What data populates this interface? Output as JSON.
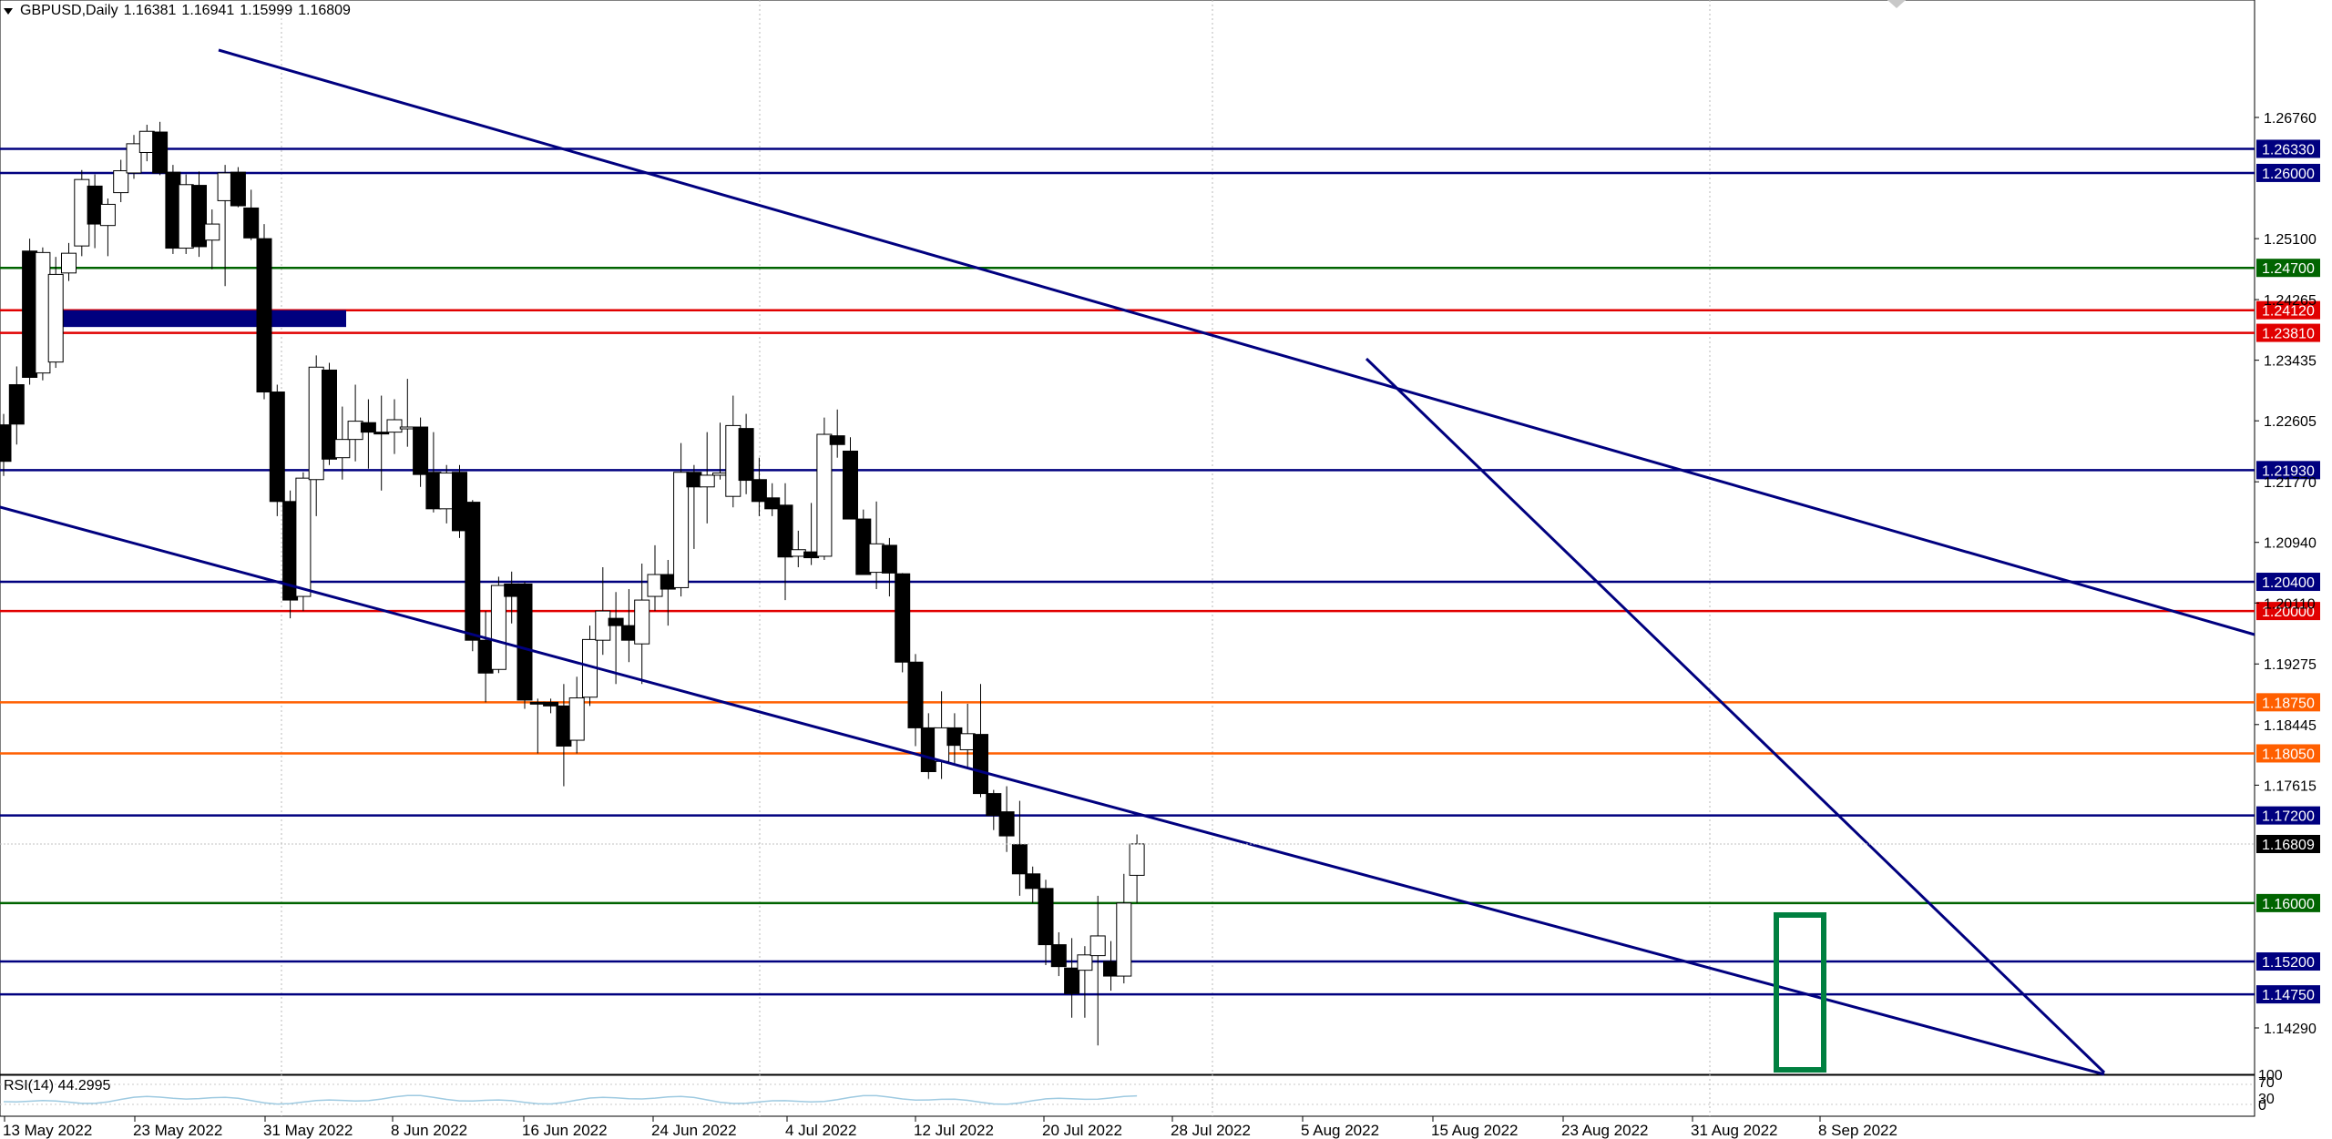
{
  "header": {
    "symbol": "GBPUSD,Daily",
    "open": "1.16381",
    "high": "1.16941",
    "low": "1.15999",
    "close": "1.16809"
  },
  "price_axis": {
    "ticks": [
      "1.26760",
      "1.25100",
      "1.24265",
      "1.23435",
      "1.22605",
      "1.21770",
      "1.20940",
      "1.20110",
      "1.19275",
      "1.18445",
      "1.17615",
      "1.14290"
    ],
    "current_price": "1.16809"
  },
  "levels": [
    {
      "price": "1.26330",
      "color": "#00007f"
    },
    {
      "price": "1.26000",
      "color": "#00007f"
    },
    {
      "price": "1.24700",
      "color": "#006400"
    },
    {
      "price": "1.24120",
      "color": "#e10000"
    },
    {
      "price": "1.23810",
      "color": "#e10000"
    },
    {
      "price": "1.21930",
      "color": "#00007f"
    },
    {
      "price": "1.20400",
      "color": "#00007f"
    },
    {
      "price": "1.20000",
      "color": "#e10000"
    },
    {
      "price": "1.18750",
      "color": "#ff5f00"
    },
    {
      "price": "1.18050",
      "color": "#ff5f00"
    },
    {
      "price": "1.17200",
      "color": "#00007f"
    },
    {
      "price": "1.16000",
      "color": "#006400"
    },
    {
      "price": "1.15200",
      "color": "#00007f"
    },
    {
      "price": "1.14750",
      "color": "#00007f"
    }
  ],
  "dates": [
    "13 May 2022",
    "23 May 2022",
    "31 May 2022",
    "8 Jun 2022",
    "16 Jun 2022",
    "24 Jun 2022",
    "4 Jul 2022",
    "12 Jul 2022",
    "20 Jul 2022",
    "28 Jul 2022",
    "5 Aug 2022",
    "15 Aug 2022",
    "23 Aug 2022",
    "31 Aug 2022",
    "8 Sep 2022"
  ],
  "rsi": {
    "label": "RSI(14) 44.2995",
    "axis_ticks": [
      "100",
      "70",
      "30",
      "0"
    ]
  },
  "colors": {
    "trendline": "#00007f",
    "highlight_box": "#008040",
    "zone_fill": "#00007f",
    "rsi_line": "#9ecae1"
  },
  "candles": [
    [
      1.2255,
      1.227,
      1.2185,
      1.2205
    ],
    [
      1.231,
      1.2335,
      1.2228,
      1.2256
    ],
    [
      1.2493,
      1.251,
      1.231,
      1.232
    ],
    [
      1.2326,
      1.2498,
      1.2316,
      1.2491
    ],
    [
      1.2341,
      1.2485,
      1.2333,
      1.2461
    ],
    [
      1.2463,
      1.2504,
      1.2452,
      1.249
    ],
    [
      1.25,
      1.2604,
      1.2486,
      1.2591
    ],
    [
      1.2582,
      1.2598,
      1.2497,
      1.253
    ],
    [
      1.2528,
      1.2565,
      1.2486,
      1.2557
    ],
    [
      1.2573,
      1.2618,
      1.256,
      1.2603
    ],
    [
      1.26,
      1.2652,
      1.2592,
      1.264
    ],
    [
      1.2628,
      1.2666,
      1.2616,
      1.2657
    ],
    [
      1.2656,
      1.267,
      1.2597,
      1.26
    ],
    [
      1.2601,
      1.2611,
      1.2489,
      1.2497
    ],
    [
      1.2497,
      1.2598,
      1.2489,
      1.2584
    ],
    [
      1.2583,
      1.2602,
      1.2485,
      1.2499
    ],
    [
      1.2508,
      1.255,
      1.2468,
      1.253
    ],
    [
      1.2562,
      1.2611,
      1.2445,
      1.26
    ],
    [
      1.2601,
      1.2608,
      1.2553,
      1.2555
    ],
    [
      1.2552,
      1.2577,
      1.2508,
      1.2511
    ],
    [
      1.251,
      1.253,
      1.229,
      1.23
    ],
    [
      1.23,
      1.231,
      1.213,
      1.215
    ],
    [
      1.215,
      1.2165,
      1.199,
      1.2015
    ],
    [
      1.202,
      1.219,
      1.2,
      1.2182
    ],
    [
      1.218,
      1.235,
      1.213,
      1.2334
    ],
    [
      1.233,
      1.234,
      1.22,
      1.2208
    ],
    [
      1.221,
      1.228,
      1.218,
      1.2235
    ],
    [
      1.2235,
      1.231,
      1.2205,
      1.226
    ],
    [
      1.2258,
      1.229,
      1.2195,
      1.2245
    ],
    [
      1.2245,
      1.2295,
      1.2165,
      1.2243
    ],
    [
      1.2245,
      1.229,
      1.2215,
      1.2262
    ],
    [
      1.225,
      1.2318,
      1.2225,
      1.2252
    ],
    [
      1.2252,
      1.2265,
      1.217,
      1.2187
    ],
    [
      1.219,
      1.2245,
      1.2135,
      1.214
    ],
    [
      1.214,
      1.22,
      1.212,
      1.2189
    ],
    [
      1.219,
      1.22,
      1.21,
      1.211
    ],
    [
      1.2149,
      1.2152,
      1.1945,
      1.196
    ],
    [
      1.196,
      1.2,
      1.1875,
      1.1915
    ],
    [
      1.192,
      1.2047,
      1.1915,
      1.2035
    ],
    [
      1.2037,
      1.2054,
      1.1983,
      1.202
    ],
    [
      1.2037,
      1.204,
      1.1866,
      1.1878
    ],
    [
      1.1875,
      1.188,
      1.1805,
      1.1873
    ],
    [
      1.1875,
      1.188,
      1.186,
      1.187
    ],
    [
      1.187,
      1.19,
      1.176,
      1.1815
    ],
    [
      1.1823,
      1.191,
      1.1805,
      1.1881
    ],
    [
      1.1882,
      1.198,
      1.187,
      1.1961
    ],
    [
      1.196,
      1.206,
      1.194,
      1.2
    ],
    [
      1.199,
      1.2026,
      1.19,
      1.198
    ],
    [
      1.198,
      1.203,
      1.193,
      1.196
    ],
    [
      1.1955,
      1.2065,
      1.19,
      1.2015
    ],
    [
      1.202,
      1.209,
      1.2,
      1.205
    ],
    [
      1.205,
      1.207,
      1.198,
      1.203
    ],
    [
      1.2032,
      1.223,
      1.202,
      1.219
    ],
    [
      1.219,
      1.22,
      1.2085,
      1.217
    ],
    [
      1.217,
      1.2245,
      1.212,
      1.2186
    ],
    [
      1.2186,
      1.2258,
      1.218,
      1.2189
    ],
    [
      1.2157,
      1.2295,
      1.2142,
      1.2254
    ],
    [
      1.225,
      1.227,
      1.216,
      1.2179
    ],
    [
      1.218,
      1.221,
      1.213,
      1.215
    ],
    [
      1.2155,
      1.2175,
      1.213,
      1.214
    ],
    [
      1.2145,
      1.2175,
      1.2015,
      1.2074
    ],
    [
      1.2075,
      1.211,
      1.206,
      1.2084
    ],
    [
      1.2081,
      1.2148,
      1.2063,
      1.2073
    ],
    [
      1.2075,
      1.2265,
      1.207,
      1.2242
    ],
    [
      1.224,
      1.2276,
      1.221,
      1.2228
    ],
    [
      1.2219,
      1.2238,
      1.213,
      1.2126
    ],
    [
      1.2126,
      1.2139,
      1.205,
      1.205
    ],
    [
      1.2053,
      1.215,
      1.203,
      1.2092
    ],
    [
      1.209,
      1.21,
      1.202,
      1.2052
    ],
    [
      1.2051,
      1.2052,
      1.1916,
      1.193
    ],
    [
      1.193,
      1.1941,
      1.1815,
      1.184
    ],
    [
      1.184,
      1.186,
      1.177,
      1.178
    ],
    [
      1.1794,
      1.189,
      1.177,
      1.184
    ],
    [
      1.184,
      1.186,
      1.179,
      1.1816
    ],
    [
      1.181,
      1.1873,
      1.1785,
      1.1832
    ],
    [
      1.1831,
      1.19,
      1.1745,
      1.175
    ],
    [
      1.175,
      1.1755,
      1.17,
      1.172
    ],
    [
      1.1725,
      1.176,
      1.167,
      1.1692
    ],
    [
      1.168,
      1.174,
      1.161,
      1.164
    ],
    [
      1.164,
      1.165,
      1.16,
      1.162
    ],
    [
      1.162,
      1.1632,
      1.1515,
      1.1543
    ],
    [
      1.1543,
      1.156,
      1.15,
      1.1513
    ],
    [
      1.1511,
      1.1552,
      1.1443,
      1.1476
    ],
    [
      1.1508,
      1.1541,
      1.1443,
      1.1529
    ],
    [
      1.1528,
      1.161,
      1.1405,
      1.1555
    ],
    [
      1.152,
      1.1548,
      1.148,
      1.15
    ],
    [
      1.15,
      1.164,
      1.149,
      1.16
    ],
    [
      1.1638,
      1.1694,
      1.16,
      1.1681
    ]
  ]
}
